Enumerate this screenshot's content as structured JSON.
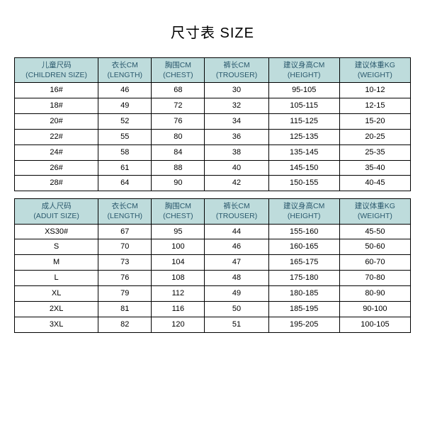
{
  "title": "尺寸表 SIZE",
  "children_table": {
    "headers": [
      {
        "cn": "儿童尺码",
        "en": "(CHILDREN SIZE)"
      },
      {
        "cn": "衣长CM",
        "en": "(LENGTH)"
      },
      {
        "cn": "胸围CM",
        "en": "(CHEST)"
      },
      {
        "cn": "裤长CM",
        "en": "(TROUSER)"
      },
      {
        "cn": "建议身高CM",
        "en": "(HEIGHT)"
      },
      {
        "cn": "建议体重KG",
        "en": "(WEIGHT)"
      }
    ],
    "rows": [
      [
        "16#",
        "46",
        "68",
        "30",
        "95-105",
        "10-12"
      ],
      [
        "18#",
        "49",
        "72",
        "32",
        "105-115",
        "12-15"
      ],
      [
        "20#",
        "52",
        "76",
        "34",
        "115-125",
        "15-20"
      ],
      [
        "22#",
        "55",
        "80",
        "36",
        "125-135",
        "20-25"
      ],
      [
        "24#",
        "58",
        "84",
        "38",
        "135-145",
        "25-35"
      ],
      [
        "26#",
        "61",
        "88",
        "40",
        "145-150",
        "35-40"
      ],
      [
        "28#",
        "64",
        "90",
        "42",
        "150-155",
        "40-45"
      ]
    ]
  },
  "adult_table": {
    "headers": [
      {
        "cn": "成人尺码",
        "en": "(ADUIT SIZE)"
      },
      {
        "cn": "衣长CM",
        "en": "(LENGTH)"
      },
      {
        "cn": "胸围CM",
        "en": "(CHEST)"
      },
      {
        "cn": "裤长CM",
        "en": "(TROUSER)"
      },
      {
        "cn": "建议身高CM",
        "en": "(HEIGHT)"
      },
      {
        "cn": "建议体重KG",
        "en": "(WEIGHT)"
      }
    ],
    "rows": [
      [
        "XS30#",
        "67",
        "95",
        "44",
        "155-160",
        "45-50"
      ],
      [
        "S",
        "70",
        "100",
        "46",
        "160-165",
        "50-60"
      ],
      [
        "M",
        "73",
        "104",
        "47",
        "165-175",
        "60-70"
      ],
      [
        "L",
        "76",
        "108",
        "48",
        "175-180",
        "70-80"
      ],
      [
        "XL",
        "79",
        "112",
        "49",
        "180-185",
        "80-90"
      ],
      [
        "2XL",
        "81",
        "116",
        "50",
        "185-195",
        "90-100"
      ],
      [
        "3XL",
        "82",
        "120",
        "51",
        "195-205",
        "100-105"
      ]
    ]
  },
  "header_bg": "#bedcdc",
  "header_fg": "#2c5a6e",
  "border_color": "#000000"
}
